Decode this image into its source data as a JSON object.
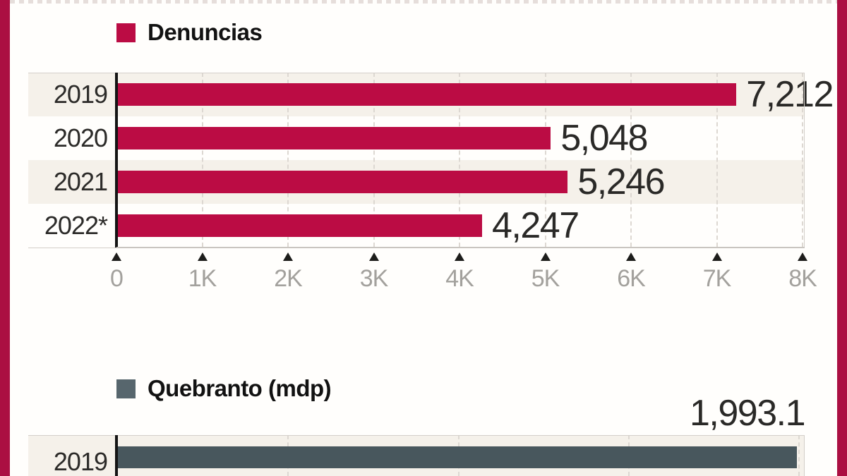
{
  "page": {
    "accent_border_color": "#ab0f42",
    "band_color": "#f5f1ea"
  },
  "chart_data": [
    {
      "type": "bar",
      "orientation": "horizontal",
      "title": "Denuncias",
      "legend_color": "#bb0c44",
      "bar_color": "#bb0c44",
      "categories": [
        "2019",
        "2020",
        "2021",
        "2022*"
      ],
      "values": [
        7212,
        5048,
        5246,
        4247
      ],
      "value_labels": [
        "7,212",
        "5,048",
        "5,246",
        "4,247"
      ],
      "xlim": [
        0,
        8000
      ],
      "grid": true,
      "xticks": [
        {
          "value": 0,
          "label": "0"
        },
        {
          "value": 1000,
          "label": "1K"
        },
        {
          "value": 2000,
          "label": "2K"
        },
        {
          "value": 3000,
          "label": "3K"
        },
        {
          "value": 4000,
          "label": "4K"
        },
        {
          "value": 5000,
          "label": "5K"
        },
        {
          "value": 6000,
          "label": "6K"
        },
        {
          "value": 7000,
          "label": "7K"
        },
        {
          "value": 8000,
          "label": "8K"
        }
      ]
    },
    {
      "type": "bar",
      "orientation": "horizontal",
      "title": "Quebranto (mdp)",
      "legend_color": "#57666d",
      "bar_color": "#48575d",
      "categories": [
        "2019"
      ],
      "values": [
        1993.1
      ],
      "value_labels": [
        "1,993.1"
      ],
      "xlim": [
        0,
        2000
      ],
      "grid": true,
      "gridline_values": [
        500,
        1000,
        1500,
        2000
      ]
    }
  ]
}
